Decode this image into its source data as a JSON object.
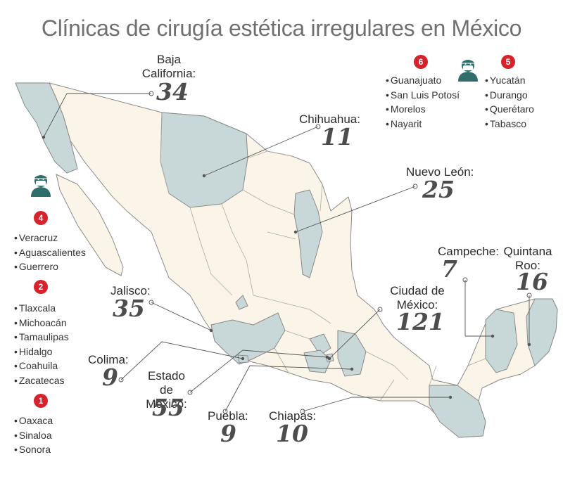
{
  "title": "Clínicas de cirugía estética irregulares en México",
  "colors": {
    "highlight_state": "#c8d8d8",
    "other_state": "#fbf4e8",
    "border": "#8a8a8a",
    "badge": "#d6232b",
    "icon": "#2f6e6a"
  },
  "icons": [
    "surgeon-icon"
  ],
  "states": [
    {
      "name": "Baja California:",
      "count": "34"
    },
    {
      "name": "Chihuahua:",
      "count": "11"
    },
    {
      "name": "Nuevo León:",
      "count": "25"
    },
    {
      "name": "Campeche:",
      "count": "7"
    },
    {
      "name": "Quintana Roo:",
      "count": "16"
    },
    {
      "name": "Ciudad de México:",
      "count": "121"
    },
    {
      "name": "Jalisco:",
      "count": "35"
    },
    {
      "name": "Colima:",
      "count": "9"
    },
    {
      "name": "Estado de México:",
      "count": "55"
    },
    {
      "name": "Puebla:",
      "count": "9"
    },
    {
      "name": "Chiapas:",
      "count": "10"
    }
  ],
  "groups": [
    {
      "count": "6",
      "states": [
        "Guanajuato",
        "San Luis Potosí",
        "Morelos",
        "Nayarit"
      ]
    },
    {
      "count": "5",
      "states": [
        "Yucatán",
        "Durango",
        "Querétaro",
        "Tabasco"
      ]
    },
    {
      "count": "4",
      "states": [
        "Veracruz",
        "Aguascalientes",
        "Guerrero"
      ]
    },
    {
      "count": "2",
      "states": [
        "Tlaxcala",
        "Michoacán",
        "Tamaulipas",
        "Hidalgo",
        "Coahuila",
        "Zacatecas"
      ]
    },
    {
      "count": "1",
      "states": [
        "Oaxaca",
        "Sinaloa",
        "Sonora"
      ]
    }
  ]
}
